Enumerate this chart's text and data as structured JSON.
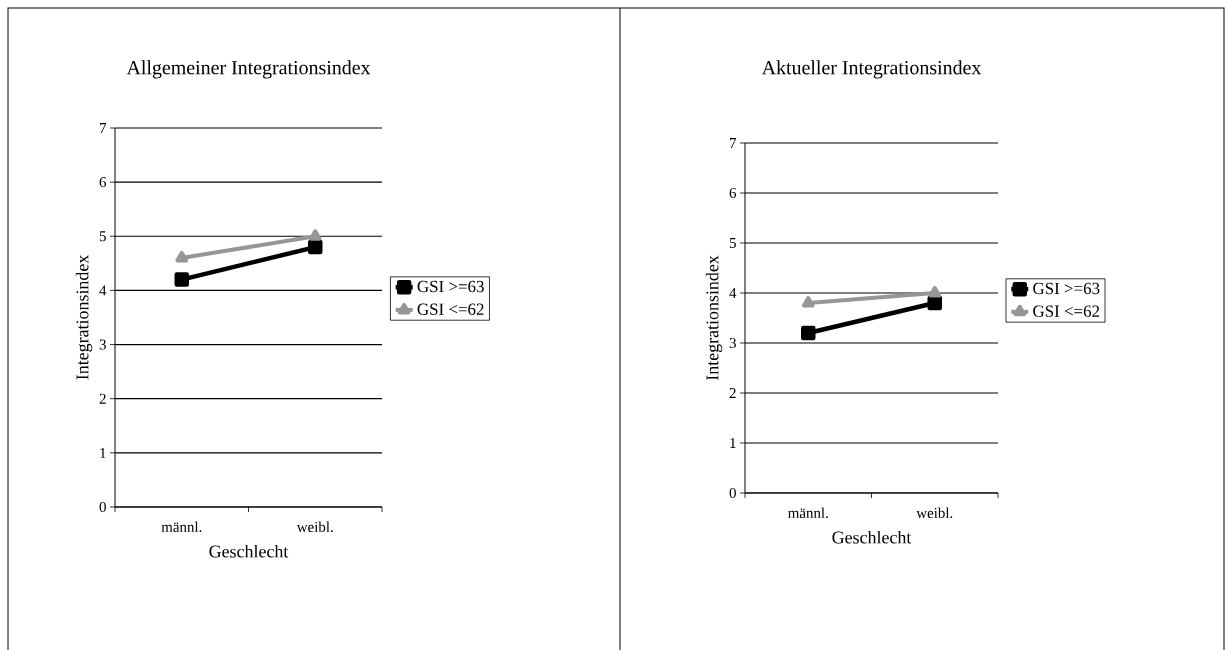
{
  "chart_data": [
    {
      "type": "line",
      "title": "Allgemeiner Integrationsindex",
      "xlabel": "Geschlecht",
      "ylabel": "Integrationsindex",
      "categories": [
        "männl.",
        "weibl."
      ],
      "series": [
        {
          "name": "GSI >=63",
          "color": "#000000",
          "marker": "square",
          "values": [
            4.2,
            4.8
          ]
        },
        {
          "name": "GSI <=62",
          "color": "#969696",
          "marker": "triangle",
          "values": [
            4.6,
            5.0
          ]
        }
      ],
      "ylim": [
        0,
        7
      ],
      "yticks": [
        0,
        1,
        2,
        3,
        4,
        5,
        6,
        7
      ],
      "grid": "y",
      "legend": "right",
      "line_style": "solid"
    },
    {
      "type": "line",
      "title": "Aktueller Integrationsindex",
      "xlabel": "Geschlecht",
      "ylabel": "Integrationsindex",
      "categories": [
        "männl.",
        "weibl."
      ],
      "series": [
        {
          "name": "GSI >=63",
          "color": "#000000",
          "marker": "square",
          "values": [
            3.2,
            3.8
          ]
        },
        {
          "name": "GSI <=62",
          "color": "#969696",
          "marker": "triangle",
          "values": [
            3.8,
            4.0
          ]
        }
      ],
      "ylim": [
        0,
        7
      ],
      "yticks": [
        0,
        1,
        2,
        3,
        4,
        5,
        6,
        7
      ],
      "grid": "y",
      "legend": "right",
      "line_style": "solid"
    }
  ]
}
